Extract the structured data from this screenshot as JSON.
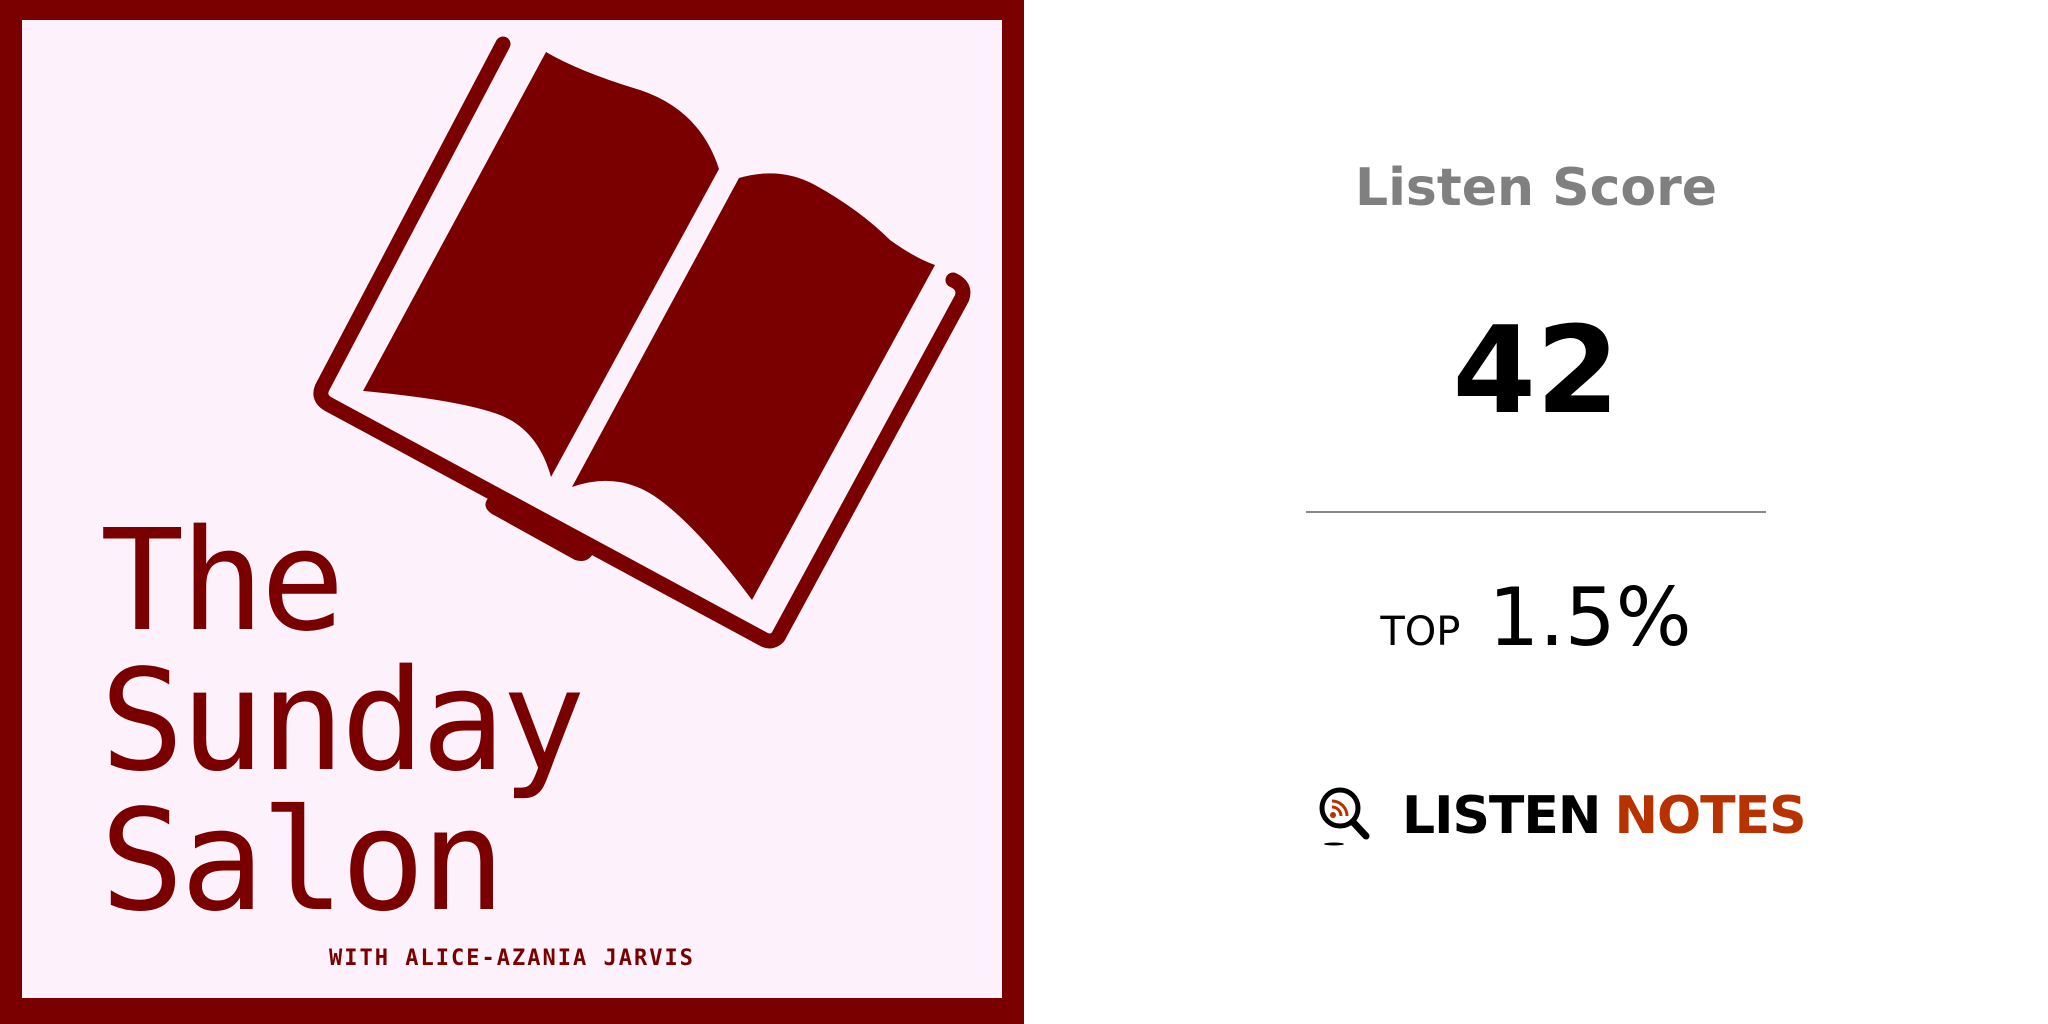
{
  "cover": {
    "title_lines": [
      "The",
      "Sunday",
      "Salon"
    ],
    "subtitle": "WITH ALICE-AZANIA JARVIS",
    "colors": {
      "border": "#7a0000",
      "background": "#fdf2fb",
      "ink": "#7a0000"
    },
    "icon": "open-book-icon"
  },
  "score_panel": {
    "label": "Listen Score",
    "score": "42",
    "rank_prefix": "TOP",
    "rank_value": "1.5%"
  },
  "brand": {
    "icon": "magnifier-rss-icon",
    "word1": "LISTEN",
    "word2": "NOTES",
    "colors": {
      "word1": "#000000",
      "word2": "#b83200"
    }
  }
}
